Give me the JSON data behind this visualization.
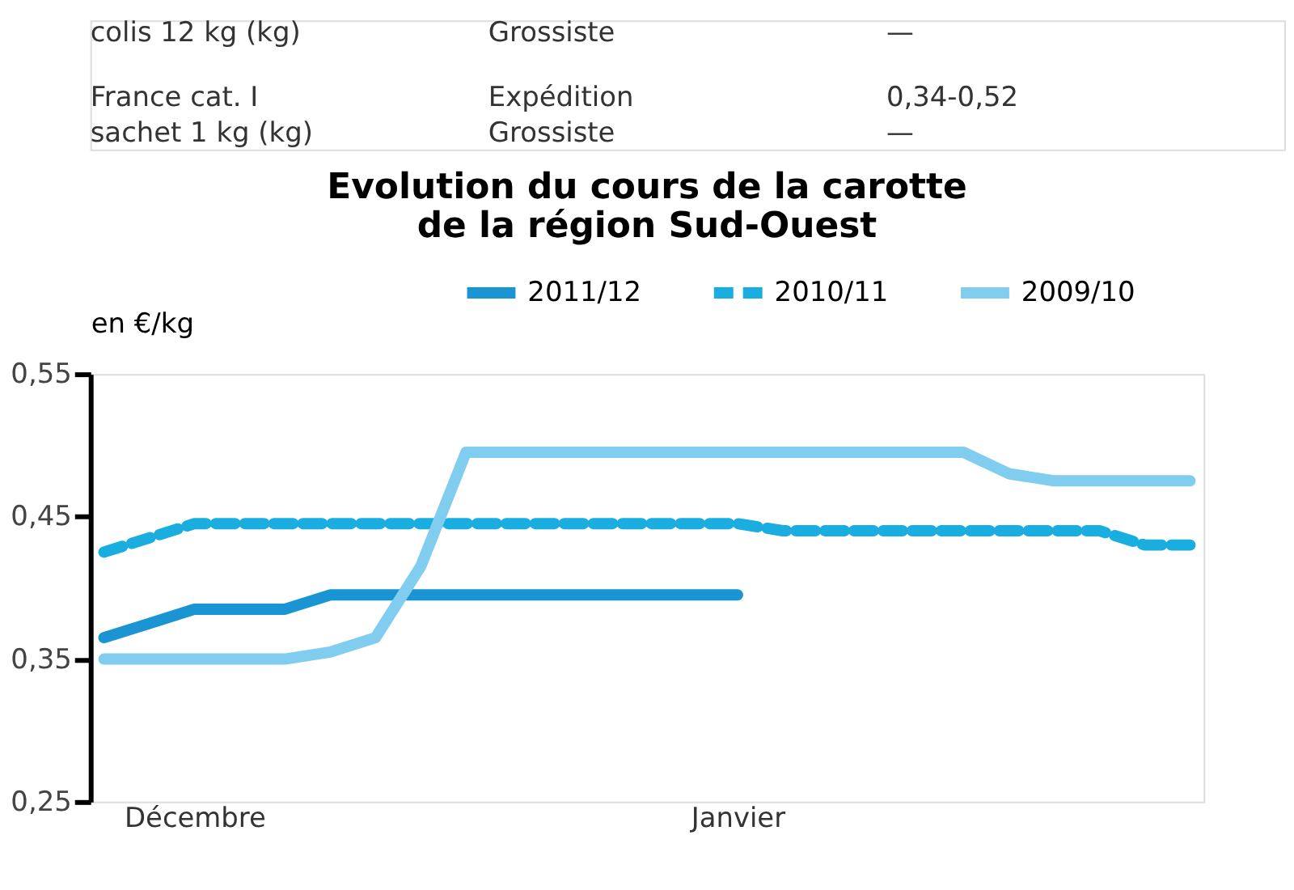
{
  "chart_data": {
    "type": "line",
    "title": "Evolution du cours de la carotte\nde la région Sud-Ouest",
    "ylabel": "en €/kg",
    "annotations": [
      "colis 12 kg (kg)",
      "Grossiste",
      "—",
      "France cat. I\nsachet 1 kg (kg)",
      "Expédition\nGrossiste",
      "0,34-0,52\n—"
    ],
    "categories": [
      null,
      null,
      "Décembre",
      null,
      null,
      null,
      null,
      null,
      null,
      null,
      null,
      null,
      null,
      null,
      "Janvier",
      null,
      null,
      null,
      null,
      null,
      null,
      null,
      null,
      null,
      null
    ],
    "series": [
      {
        "name": "2011/12",
        "color": "#1a94d2",
        "line_style": "solid",
        "values": [
          0.365,
          0.375,
          0.385,
          0.385,
          0.385,
          0.395,
          0.395,
          0.395,
          0.395,
          0.395,
          0.395,
          0.395,
          0.395,
          0.395,
          0.395,
          null,
          null,
          null,
          null,
          null,
          null,
          null,
          null,
          null,
          null
        ]
      },
      {
        "name": "2010/11",
        "color": "#19ade0",
        "line_style": "dashed",
        "values": [
          0.425,
          0.435,
          0.445,
          0.445,
          0.445,
          0.445,
          0.445,
          0.445,
          0.445,
          0.445,
          0.445,
          0.445,
          0.445,
          0.445,
          0.445,
          0.44,
          0.44,
          0.44,
          0.44,
          0.44,
          0.44,
          0.44,
          0.44,
          0.43,
          0.43
        ]
      },
      {
        "name": "2009/10",
        "color": "#80cdf0",
        "line_style": "solid",
        "values": [
          0.35,
          0.35,
          0.35,
          0.35,
          0.35,
          0.355,
          0.365,
          0.415,
          0.495,
          0.495,
          0.495,
          0.495,
          0.495,
          0.495,
          0.495,
          0.495,
          0.495,
          0.495,
          0.495,
          0.495,
          0.48,
          0.475,
          0.475,
          0.475,
          0.475
        ]
      }
    ],
    "ylim": [
      0.25,
      0.55
    ],
    "yticks": [
      {
        "value": 0.25,
        "label": "0,25"
      },
      {
        "value": 0.35,
        "label": "0,35"
      },
      {
        "value": 0.45,
        "label": "0,45"
      },
      {
        "value": 0.55,
        "label": "0,55"
      }
    ],
    "grid": false,
    "legend": "top",
    "marker": "none"
  }
}
